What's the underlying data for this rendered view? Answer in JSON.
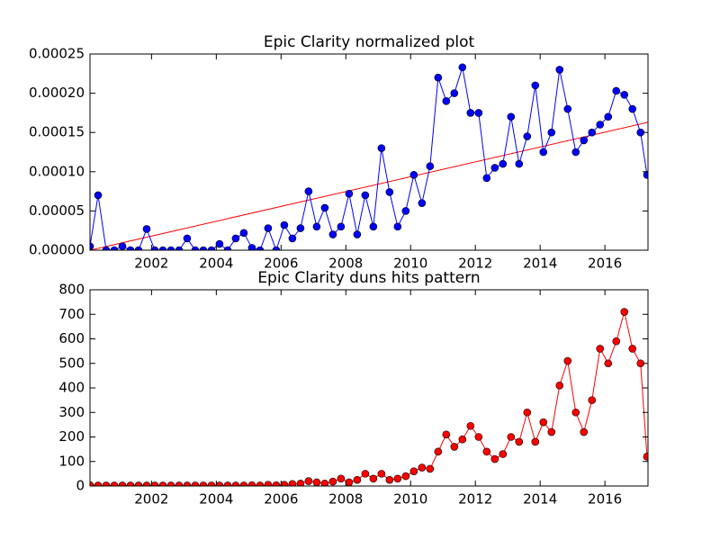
{
  "chart_data": [
    {
      "type": "line",
      "title": "Epic Clarity normalized plot",
      "x": [
        2000.1,
        2000.35,
        2000.6,
        2000.85,
        2001.1,
        2001.35,
        2001.6,
        2001.85,
        2002.1,
        2002.35,
        2002.6,
        2002.85,
        2003.1,
        2003.35,
        2003.6,
        2003.85,
        2004.1,
        2004.35,
        2004.6,
        2004.85,
        2005.1,
        2005.35,
        2005.6,
        2005.85,
        2006.1,
        2006.35,
        2006.6,
        2006.85,
        2007.1,
        2007.35,
        2007.6,
        2007.85,
        2008.1,
        2008.35,
        2008.6,
        2008.85,
        2009.1,
        2009.35,
        2009.6,
        2009.85,
        2010.1,
        2010.35,
        2010.6,
        2010.85,
        2011.1,
        2011.35,
        2011.6,
        2011.85,
        2012.1,
        2012.35,
        2012.6,
        2012.85,
        2013.1,
        2013.35,
        2013.6,
        2013.85,
        2014.1,
        2014.35,
        2014.6,
        2014.85,
        2015.1,
        2015.35,
        2015.6,
        2015.85,
        2016.1,
        2016.35,
        2016.6,
        2016.85,
        2017.1,
        2017.3
      ],
      "values": [
        5e-06,
        7e-05,
        0,
        0,
        5e-06,
        0,
        0,
        2.7e-05,
        0,
        0,
        0,
        0,
        1.5e-05,
        0,
        0,
        0,
        8e-06,
        0,
        1.5e-05,
        2.2e-05,
        3e-06,
        0,
        2.8e-05,
        0,
        3.2e-05,
        1.5e-05,
        2.8e-05,
        7.5e-05,
        3e-05,
        5.4e-05,
        2e-05,
        3e-05,
        7.2e-05,
        2e-05,
        7e-05,
        3e-05,
        0.00013,
        7.4e-05,
        3e-05,
        5e-05,
        9.6e-05,
        6e-05,
        0.000107,
        0.00022,
        0.00019,
        0.0002,
        0.000233,
        0.000175,
        0.000175,
        9.2e-05,
        0.000105,
        0.00011,
        0.00017,
        0.00011,
        0.000145,
        0.00021,
        0.000125,
        0.00015,
        0.00023,
        0.00018,
        0.000125,
        0.00014,
        0.00015,
        0.00016,
        0.00017,
        0.000203,
        0.000198,
        0.00018,
        0.00015,
        9.6e-05
      ],
      "color": "#0000ff",
      "trend": {
        "x": [
          2000.1,
          2017.33
        ],
        "values": [
          0,
          0.000163
        ],
        "color": "#ff0000"
      },
      "xlim": [
        2000.1,
        2017.33
      ],
      "xticks": [
        2002,
        2004,
        2006,
        2008,
        2010,
        2012,
        2014,
        2016
      ],
      "ylim": [
        0,
        0.00025
      ],
      "yticks": [
        {
          "value": 0,
          "label": "0.00000"
        },
        {
          "value": 5e-05,
          "label": "0.00005"
        },
        {
          "value": 0.0001,
          "label": "0.00010"
        },
        {
          "value": 0.00015,
          "label": "0.00015"
        },
        {
          "value": 0.0002,
          "label": "0.00020"
        },
        {
          "value": 0.00025,
          "label": "0.00025"
        }
      ]
    },
    {
      "type": "line",
      "title": "Epic Clarity duns hits pattern",
      "x": [
        2000.1,
        2000.35,
        2000.6,
        2000.85,
        2001.1,
        2001.35,
        2001.6,
        2001.85,
        2002.1,
        2002.35,
        2002.6,
        2002.85,
        2003.1,
        2003.35,
        2003.6,
        2003.85,
        2004.1,
        2004.35,
        2004.6,
        2004.85,
        2005.1,
        2005.35,
        2005.6,
        2005.85,
        2006.1,
        2006.35,
        2006.6,
        2006.85,
        2007.1,
        2007.35,
        2007.6,
        2007.85,
        2008.1,
        2008.35,
        2008.6,
        2008.85,
        2009.1,
        2009.35,
        2009.6,
        2009.85,
        2010.1,
        2010.35,
        2010.6,
        2010.85,
        2011.1,
        2011.35,
        2011.6,
        2011.85,
        2012.1,
        2012.35,
        2012.6,
        2012.85,
        2013.1,
        2013.35,
        2013.6,
        2013.85,
        2014.1,
        2014.35,
        2014.6,
        2014.85,
        2015.1,
        2015.35,
        2015.6,
        2015.85,
        2016.1,
        2016.35,
        2016.6,
        2016.85,
        2017.1,
        2017.3
      ],
      "values": [
        3,
        2,
        2,
        2,
        2,
        2,
        2,
        2,
        2,
        2,
        2,
        2,
        2,
        2,
        2,
        2,
        2,
        2,
        2,
        2,
        3,
        2,
        5,
        3,
        5,
        8,
        10,
        20,
        15,
        10,
        18,
        30,
        15,
        25,
        50,
        30,
        50,
        25,
        30,
        40,
        60,
        75,
        70,
        140,
        210,
        160,
        190,
        245,
        200,
        140,
        110,
        130,
        200,
        180,
        300,
        180,
        260,
        220,
        410,
        510,
        300,
        220,
        350,
        560,
        500,
        590,
        710,
        560,
        500,
        120
      ],
      "color": "#ff0000",
      "xlim": [
        2000.1,
        2017.33
      ],
      "xticks": [
        2002,
        2004,
        2006,
        2008,
        2010,
        2012,
        2014,
        2016
      ],
      "ylim": [
        0,
        800
      ],
      "yticks": [
        0,
        100,
        200,
        300,
        400,
        500,
        600,
        700,
        800
      ]
    }
  ]
}
